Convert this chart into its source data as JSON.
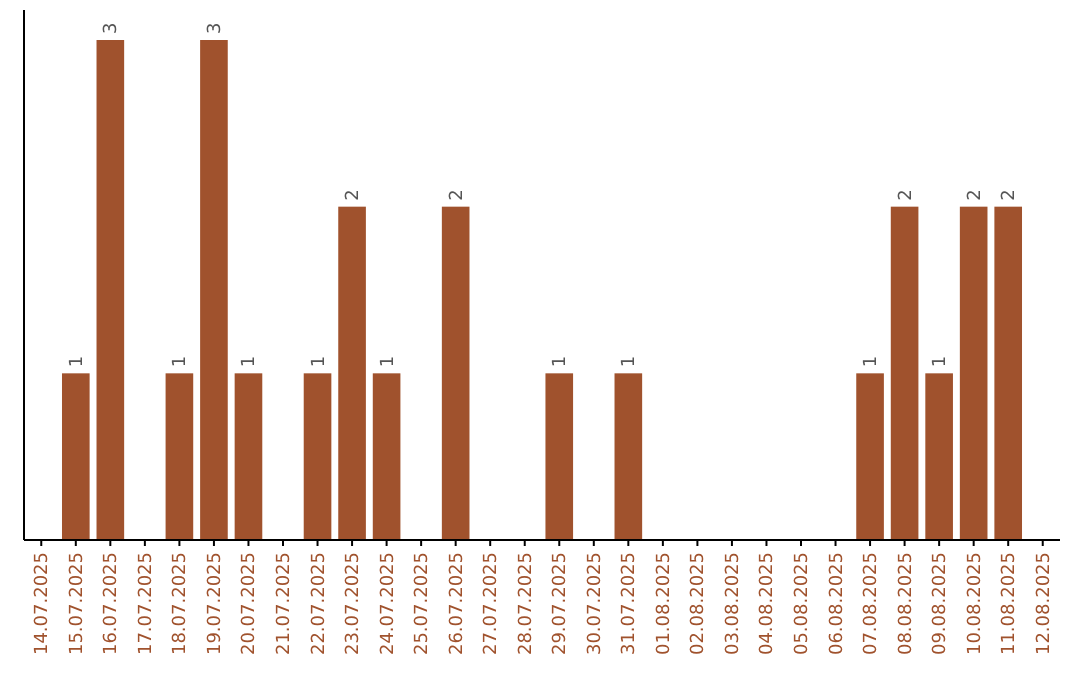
{
  "chart_data": {
    "type": "bar",
    "categories": [
      "14.07.2025",
      "15.07.2025",
      "16.07.2025",
      "17.07.2025",
      "18.07.2025",
      "19.07.2025",
      "20.07.2025",
      "21.07.2025",
      "22.07.2025",
      "23.07.2025",
      "24.07.2025",
      "25.07.2025",
      "26.07.2025",
      "27.07.2025",
      "28.07.2025",
      "29.07.2025",
      "30.07.2025",
      "31.07.2025",
      "01.08.2025",
      "02.08.2025",
      "03.08.2025",
      "04.08.2025",
      "05.08.2025",
      "06.08.2025",
      "07.08.2025",
      "08.08.2025",
      "09.08.2025",
      "10.08.2025",
      "11.08.2025",
      "12.08.2025"
    ],
    "values": [
      0,
      1,
      3,
      0,
      1,
      3,
      1,
      0,
      1,
      2,
      1,
      0,
      2,
      0,
      0,
      1,
      0,
      1,
      0,
      0,
      0,
      0,
      0,
      0,
      1,
      2,
      1,
      2,
      2,
      0
    ],
    "value_labels": [
      null,
      "1",
      "3",
      null,
      "1",
      "3",
      "1",
      null,
      "1",
      "2",
      "1",
      null,
      "2",
      null,
      null,
      "1",
      null,
      "1",
      null,
      null,
      null,
      null,
      null,
      null,
      "1",
      "2",
      "1",
      "2",
      "2",
      null
    ],
    "color": "#a0522d",
    "ylim": [
      0,
      3
    ],
    "tick_labels": "x"
  }
}
